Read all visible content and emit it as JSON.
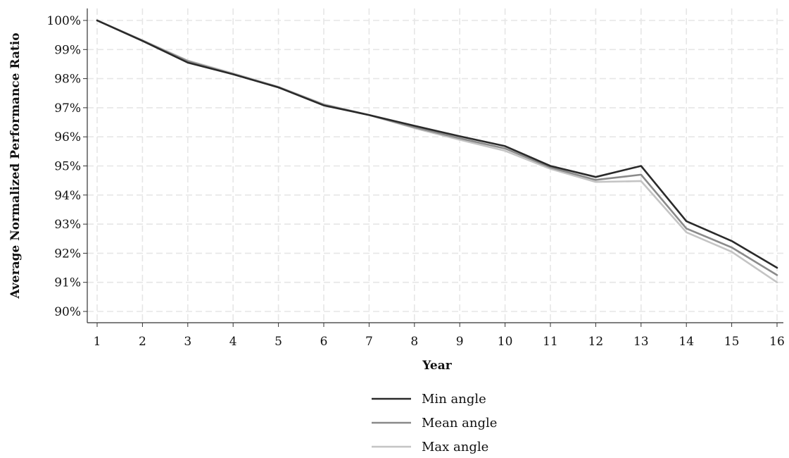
{
  "chart_data": {
    "type": "line",
    "title": "",
    "xlabel": "Year",
    "ylabel": "Average Normalized Performance Ratio",
    "x": [
      1,
      2,
      3,
      4,
      5,
      6,
      7,
      8,
      9,
      10,
      11,
      12,
      13,
      14,
      15,
      16
    ],
    "xlim": [
      1,
      16
    ],
    "ylim": [
      90,
      100
    ],
    "yticks": [
      100,
      99,
      98,
      97,
      96,
      95,
      94,
      93,
      92,
      91,
      90
    ],
    "ytick_labels": [
      "100%",
      "99%",
      "98%",
      "97%",
      "96%",
      "95%",
      "94%",
      "93%",
      "92%",
      "91%",
      "90%"
    ],
    "xtick_labels": [
      "1",
      "2",
      "3",
      "4",
      "5",
      "6",
      "7",
      "8",
      "9",
      "10",
      "11",
      "12",
      "13",
      "14",
      "15",
      "16"
    ],
    "grid": true,
    "legend_position": "bottom-center",
    "series": [
      {
        "name": "Min angle",
        "color": "#2a2a2a",
        "values": [
          100.0,
          99.3,
          98.55,
          98.15,
          97.7,
          97.08,
          96.75,
          96.38,
          96.02,
          95.68,
          95.0,
          94.62,
          95.0,
          93.1,
          92.42,
          91.5
        ]
      },
      {
        "name": "Mean angle",
        "color": "#8a8a8a",
        "values": [
          100.0,
          99.3,
          98.6,
          98.15,
          97.7,
          97.1,
          96.75,
          96.33,
          95.95,
          95.6,
          94.95,
          94.52,
          94.7,
          92.85,
          92.2,
          91.25
        ]
      },
      {
        "name": "Max angle",
        "color": "#c4c4c4",
        "values": [
          100.0,
          99.32,
          98.62,
          98.18,
          97.72,
          97.12,
          96.75,
          96.3,
          95.9,
          95.52,
          94.9,
          94.45,
          94.48,
          92.72,
          92.05,
          91.0
        ]
      }
    ]
  }
}
